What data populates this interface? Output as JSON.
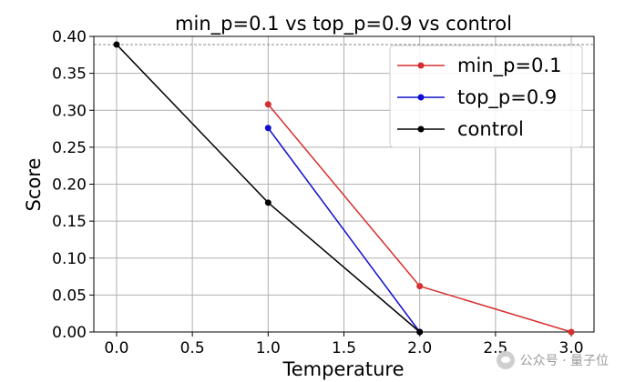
{
  "chart_data": {
    "type": "line",
    "title": "min_p=0.1 vs top_p=0.9 vs control",
    "xlabel": "Temperature",
    "ylabel": "Score",
    "xlim": [
      -0.15,
      3.15
    ],
    "ylim": [
      0.0,
      0.4
    ],
    "x_ticks": [
      "0.0",
      "0.5",
      "1.0",
      "1.5",
      "2.0",
      "2.5",
      "3.0"
    ],
    "y_ticks": [
      "0.00",
      "0.05",
      "0.10",
      "0.15",
      "0.20",
      "0.25",
      "0.30",
      "0.35",
      "0.40"
    ],
    "grid": true,
    "legend_position": "top-right",
    "reference_line": {
      "y": 0.389,
      "style": "dashed",
      "color": "#888888"
    },
    "series": [
      {
        "name": "min_p=0.1",
        "color": "#d62f2f",
        "x": [
          1.0,
          2.0,
          3.0
        ],
        "y": [
          0.308,
          0.062,
          0.0
        ]
      },
      {
        "name": "top_p=0.9",
        "color": "#1010cc",
        "x": [
          1.0,
          2.0
        ],
        "y": [
          0.276,
          0.0
        ]
      },
      {
        "name": "control",
        "color": "#000000",
        "x": [
          0.0,
          1.0,
          2.0
        ],
        "y": [
          0.389,
          0.175,
          0.0
        ]
      }
    ]
  },
  "watermark": {
    "text": "公众号 · 量子位"
  }
}
